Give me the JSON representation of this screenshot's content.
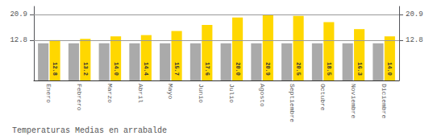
{
  "chart_data": {
    "type": "bar",
    "title": "Temperaturas Medias en arrabalde",
    "categories": [
      "Enero",
      "Febrero",
      "Marzo",
      "Abril",
      "Mayo",
      "Junio",
      "Julio",
      "Agosto",
      "Septiembre",
      "Octubre",
      "Noviembre",
      "Diciembre"
    ],
    "series": [
      {
        "color": "#AAAAAA",
        "values": [
          11.8,
          11.8,
          11.8,
          11.8,
          11.8,
          11.8,
          11.8,
          11.8,
          11.8,
          11.8,
          11.8,
          11.8
        ]
      },
      {
        "color": "#FFD700",
        "values": [
          12.8,
          13.2,
          14.0,
          14.4,
          15.7,
          17.6,
          20.0,
          20.9,
          20.5,
          18.5,
          16.3,
          14.0
        ],
        "value_labels": [
          "12.8",
          "13.2",
          "14.0",
          "14.4",
          "15.7",
          "17.6",
          "20.0",
          "20.9",
          "20.5",
          "18.5",
          "16.3",
          "14.0"
        ],
        "data_labels": true
      }
    ],
    "ylim": [
      0,
      23.5
    ],
    "yticks": [
      12.8,
      20.9
    ],
    "y2lim": [
      0,
      23.5
    ],
    "y2ticks": [
      12.8,
      20.9
    ],
    "grid": true
  }
}
